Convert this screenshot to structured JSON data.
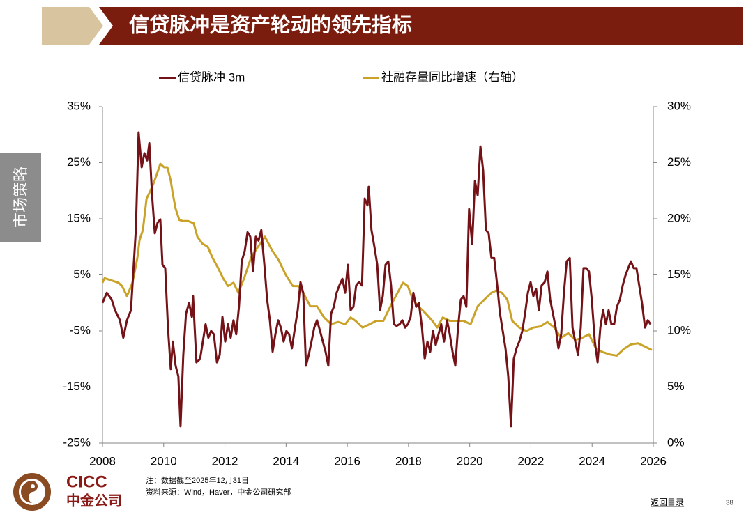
{
  "header": {
    "title": "信贷脉冲是资产轮动的领先指标"
  },
  "sidebar": {
    "label": "市场策略"
  },
  "chart_data": {
    "type": "line",
    "series": [
      {
        "name": "信贷脉冲 3m",
        "color": "#741217",
        "axis": "y",
        "x": [
          2008.0,
          2008.14,
          2008.3,
          2008.41,
          2008.57,
          2008.68,
          2008.8,
          2008.93,
          2009.09,
          2009.18,
          2009.28,
          2009.37,
          2009.46,
          2009.53,
          2009.62,
          2009.71,
          2009.8,
          2009.89,
          2009.96,
          2010.05,
          2010.14,
          2010.23,
          2010.3,
          2010.39,
          2010.48,
          2010.55,
          2010.64,
          2010.73,
          2010.83,
          2010.92,
          2010.96,
          2011.07,
          2011.19,
          2011.28,
          2011.37,
          2011.46,
          2011.55,
          2011.64,
          2011.74,
          2011.83,
          2011.92,
          2012.01,
          2012.1,
          2012.19,
          2012.28,
          2012.37,
          2012.46,
          2012.55,
          2012.65,
          2012.74,
          2012.83,
          2012.92,
          2013.01,
          2013.1,
          2013.19,
          2013.29,
          2013.38,
          2013.47,
          2013.56,
          2013.65,
          2013.74,
          2013.83,
          2013.92,
          2014.01,
          2014.1,
          2014.19,
          2014.29,
          2014.38,
          2014.47,
          2014.56,
          2014.65,
          2014.74,
          2014.83,
          2014.92,
          2015.01,
          2015.11,
          2015.2,
          2015.29,
          2015.38,
          2015.47,
          2015.56,
          2015.65,
          2015.74,
          2015.84,
          2015.93,
          2016.02,
          2016.11,
          2016.2,
          2016.29,
          2016.38,
          2016.48,
          2016.57,
          2016.66,
          2016.7,
          2016.79,
          2016.89,
          2016.98,
          2017.07,
          2017.16,
          2017.25,
          2017.34,
          2017.43,
          2017.52,
          2017.61,
          2017.71,
          2017.8,
          2017.89,
          2017.98,
          2018.07,
          2018.16,
          2018.25,
          2018.34,
          2018.44,
          2018.53,
          2018.62,
          2018.71,
          2018.8,
          2018.89,
          2018.98,
          2019.07,
          2019.16,
          2019.26,
          2019.35,
          2019.44,
          2019.53,
          2019.62,
          2019.71,
          2019.8,
          2019.89,
          2019.98,
          2020.08,
          2020.17,
          2020.26,
          2020.35,
          2020.44,
          2020.53,
          2020.62,
          2020.71,
          2020.8,
          2020.9,
          2020.99,
          2021.08,
          2021.17,
          2021.26,
          2021.35,
          2021.44,
          2021.53,
          2021.62,
          2021.72,
          2021.81,
          2021.9,
          2021.99,
          2022.08,
          2022.17,
          2022.26,
          2022.35,
          2022.45,
          2022.54,
          2022.63,
          2022.72,
          2022.81,
          2022.9,
          2022.99,
          2023.08,
          2023.17,
          2023.27,
          2023.36,
          2023.45,
          2023.54,
          2023.63,
          2023.72,
          2023.81,
          2023.9,
          2023.99,
          2024.09,
          2024.18,
          2024.27,
          2024.36,
          2024.45,
          2024.54,
          2024.63,
          2024.72,
          2024.81,
          2024.91,
          2025.0,
          2025.09,
          2025.18,
          2025.27,
          2025.36,
          2025.45,
          2025.54,
          2025.63,
          2025.73,
          2025.82,
          2025.91
        ],
        "values": [
          0.0,
          1.8,
          0.6,
          -1.3,
          -3.1,
          -6.2,
          -3.1,
          -1.3,
          13.0,
          30.4,
          24.2,
          26.7,
          25.4,
          28.5,
          19.2,
          12.4,
          14.3,
          14.9,
          6.8,
          6.2,
          -4.4,
          -11.8,
          -6.9,
          -11.2,
          -13.1,
          -22.0,
          -9.3,
          -1.9,
          0.0,
          -2.5,
          1.2,
          -10.6,
          -10.0,
          -6.9,
          -3.8,
          -6.2,
          -5.0,
          -5.6,
          -10.6,
          -9.3,
          -2.5,
          -6.9,
          -3.8,
          -6.2,
          -3.1,
          -5.6,
          -0.7,
          7.4,
          9.3,
          12.6,
          11.8,
          5.6,
          11.8,
          11.1,
          13.0,
          6.8,
          0.6,
          -3.1,
          -8.7,
          -5.6,
          -3.1,
          -4.4,
          -6.9,
          -5.0,
          -5.6,
          -8.1,
          -4.4,
          -1.3,
          3.7,
          1.8,
          -11.2,
          -9.3,
          -6.9,
          -4.4,
          -3.1,
          -5.0,
          -6.9,
          -8.7,
          -11.2,
          -1.9,
          -0.7,
          1.8,
          3.1,
          4.3,
          1.8,
          6.8,
          -1.3,
          -0.7,
          3.1,
          3.7,
          3.1,
          18.6,
          17.4,
          20.7,
          13.0,
          9.9,
          6.8,
          -1.3,
          1.2,
          6.8,
          7.4,
          3.1,
          -3.8,
          -4.1,
          -3.8,
          -3.1,
          -4.4,
          -3.8,
          -2.5,
          1.8,
          -0.7,
          0.0,
          -4.4,
          -10.0,
          -6.9,
          -8.7,
          -5.0,
          -7.5,
          -5.6,
          -3.8,
          -6.9,
          -3.1,
          -5.6,
          -8.7,
          -11.2,
          -4.4,
          0.6,
          1.2,
          -0.7,
          16.7,
          10.5,
          21.7,
          19.2,
          27.9,
          23.6,
          13.0,
          12.4,
          8.0,
          8.0,
          3.1,
          -1.9,
          -5.0,
          -8.1,
          -13.1,
          -22.0,
          -10.0,
          -8.1,
          -6.9,
          -5.0,
          -1.9,
          1.8,
          3.7,
          1.2,
          2.5,
          -1.3,
          3.1,
          3.7,
          5.6,
          0.6,
          -1.9,
          -4.4,
          -8.1,
          -5.6,
          1.8,
          7.4,
          8.0,
          -4.4,
          -6.9,
          -9.3,
          -4.4,
          6.2,
          6.2,
          5.6,
          0.6,
          -6.9,
          -10.6,
          -4.4,
          -1.3,
          -3.8,
          -1.3,
          -3.8,
          -3.8,
          -0.7,
          0.6,
          3.1,
          4.9,
          6.2,
          7.4,
          6.2,
          6.2,
          3.1,
          0.0,
          -4.4,
          -3.1,
          -3.8
        ]
      },
      {
        "name": "社融存量同比增速（右轴）",
        "color": "#c9a227",
        "axis": "y2",
        "x": [
          2008.0,
          2008.07,
          2008.3,
          2008.52,
          2008.64,
          2008.8,
          2008.98,
          2009.14,
          2009.21,
          2009.32,
          2009.44,
          2009.55,
          2009.66,
          2009.78,
          2009.89,
          2010.01,
          2010.12,
          2010.23,
          2010.3,
          2010.39,
          2010.51,
          2010.62,
          2010.8,
          2010.98,
          2011.1,
          2011.26,
          2011.44,
          2011.6,
          2011.78,
          2011.94,
          2012.1,
          2012.28,
          2012.44,
          2012.63,
          2012.74,
          2012.85,
          2013.08,
          2013.31,
          2013.54,
          2013.76,
          2013.99,
          2014.22,
          2014.4,
          2014.56,
          2014.79,
          2015.01,
          2015.24,
          2015.47,
          2015.7,
          2015.93,
          2016.11,
          2016.27,
          2016.5,
          2016.73,
          2016.95,
          2017.18,
          2017.41,
          2017.64,
          2017.82,
          2017.98,
          2018.14,
          2018.32,
          2018.55,
          2018.78,
          2018.94,
          2019.12,
          2019.35,
          2019.57,
          2019.8,
          2020.03,
          2020.26,
          2020.48,
          2020.71,
          2020.87,
          2021.05,
          2021.23,
          2021.39,
          2021.62,
          2021.85,
          2022.08,
          2022.31,
          2022.54,
          2022.76,
          2022.99,
          2023.22,
          2023.45,
          2023.68,
          2023.9,
          2024.13,
          2024.36,
          2024.59,
          2024.81,
          2025.04,
          2025.27,
          2025.5,
          2025.73,
          2025.95
        ],
        "values": [
          14.3,
          14.7,
          14.5,
          14.3,
          14.0,
          13.1,
          14.3,
          16.5,
          18.1,
          19.0,
          21.8,
          22.4,
          23.1,
          24.0,
          24.9,
          24.6,
          24.6,
          23.4,
          22.2,
          20.9,
          19.9,
          19.8,
          19.8,
          19.6,
          18.4,
          17.8,
          17.5,
          16.5,
          15.6,
          14.7,
          14.0,
          14.3,
          13.4,
          14.7,
          15.6,
          16.5,
          17.5,
          18.4,
          17.2,
          16.3,
          15.0,
          14.0,
          14.0,
          13.4,
          12.2,
          12.2,
          11.2,
          10.6,
          10.8,
          10.6,
          11.2,
          10.9,
          10.3,
          10.6,
          10.9,
          10.9,
          12.2,
          13.4,
          14.3,
          14.0,
          12.8,
          12.2,
          11.6,
          10.9,
          10.3,
          11.2,
          10.9,
          10.9,
          10.9,
          10.6,
          12.2,
          12.8,
          13.4,
          13.6,
          13.4,
          12.8,
          10.9,
          10.3,
          10.0,
          10.3,
          10.4,
          10.8,
          10.3,
          9.4,
          9.8,
          9.2,
          9.4,
          9.7,
          8.4,
          8.1,
          7.9,
          7.8,
          8.4,
          8.8,
          8.9,
          8.6,
          8.3
        ]
      }
    ],
    "xlim": [
      2008,
      2026
    ],
    "xticks": [
      2008,
      2010,
      2012,
      2014,
      2016,
      2018,
      2020,
      2022,
      2024,
      2026
    ],
    "ylim": [
      -25,
      35
    ],
    "yticks": [
      {
        "value": -25,
        "label": "-25%"
      },
      {
        "value": -15,
        "label": "-15%"
      },
      {
        "value": -5,
        "label": "-5%"
      },
      {
        "value": 5,
        "label": "5%"
      },
      {
        "value": 15,
        "label": "15%"
      },
      {
        "value": 25,
        "label": "25%"
      },
      {
        "value": 35,
        "label": "35%"
      }
    ],
    "y2lim": [
      0,
      30
    ],
    "y2ticks": [
      {
        "value": 0,
        "label": "0%"
      },
      {
        "value": 5,
        "label": "5%"
      },
      {
        "value": 10,
        "label": "10%"
      },
      {
        "value": 15,
        "label": "15%"
      },
      {
        "value": 20,
        "label": "20%"
      },
      {
        "value": 25,
        "label": "25%"
      },
      {
        "value": 30,
        "label": "30%"
      }
    ],
    "grid": false,
    "legend": "top"
  },
  "footer": {
    "logo_en": "CICC",
    "logo_cn": "中金公司",
    "note": "注：数据截至2025年12月31日",
    "source": "资料来源：Wind，Haver，中金公司研究部",
    "link": "返回目录",
    "page": 38
  }
}
